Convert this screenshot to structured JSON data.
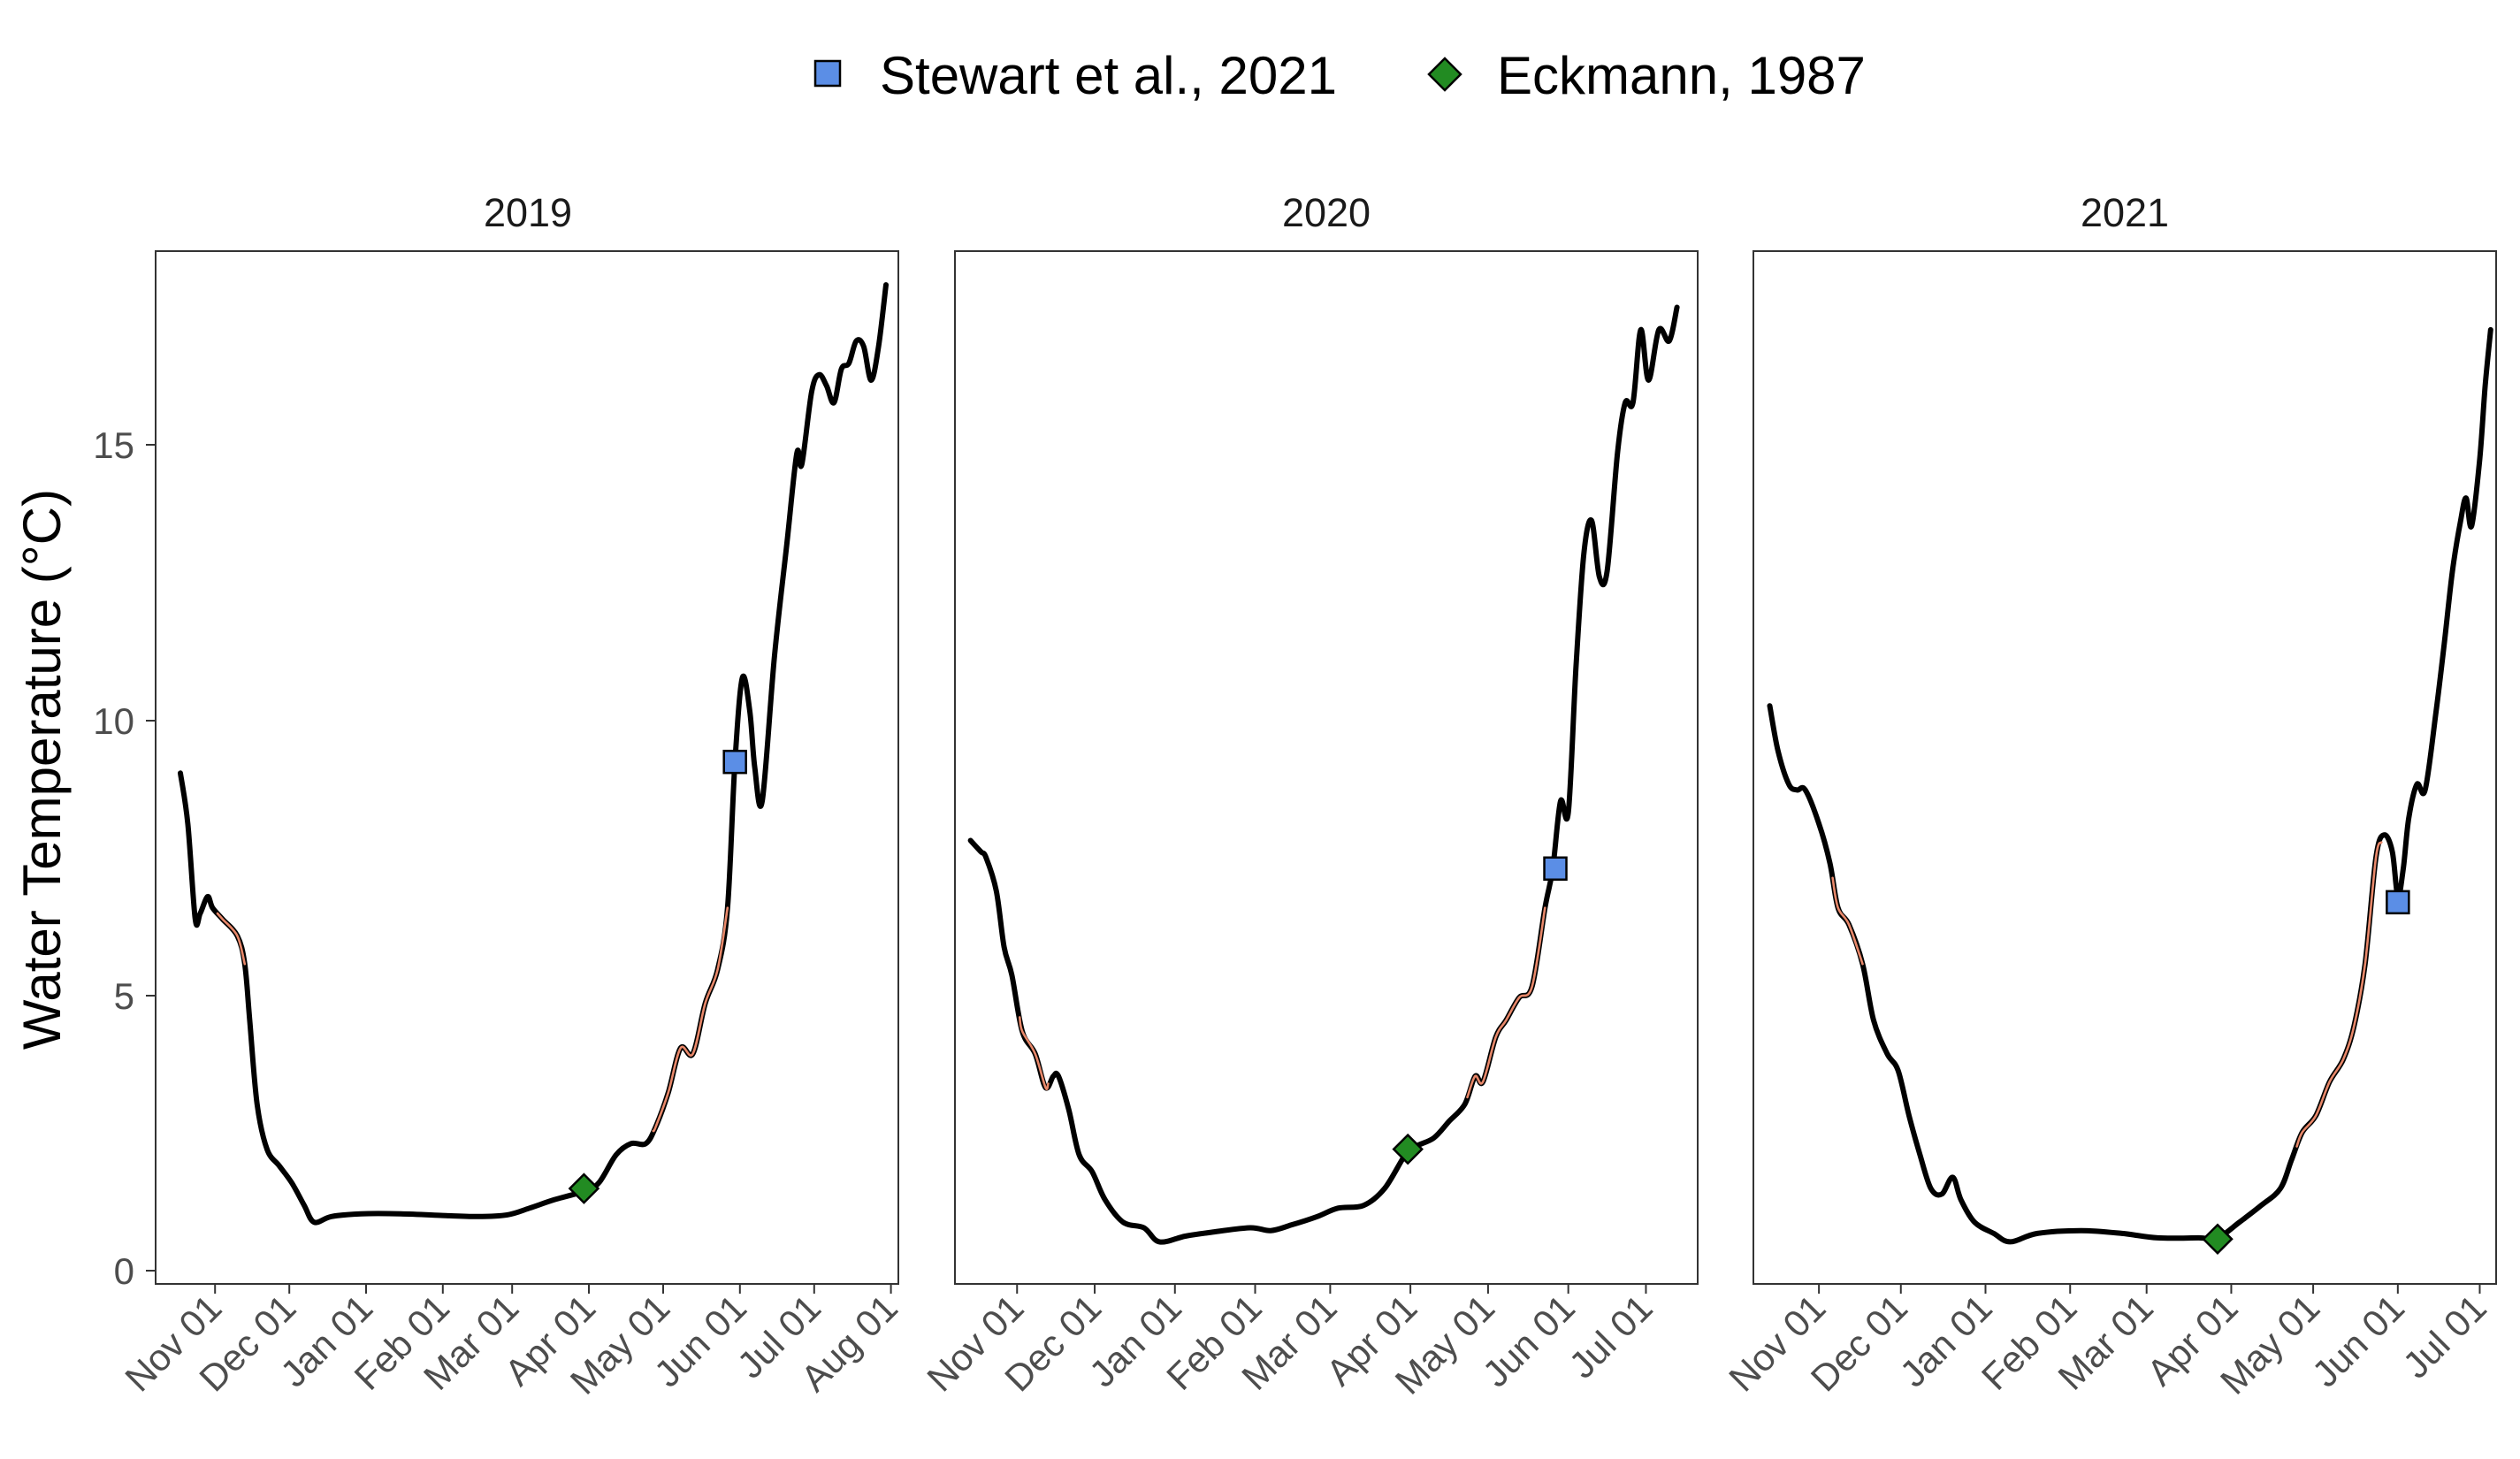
{
  "legend": {
    "items": [
      {
        "label": "Stewart et al., 2021",
        "shape": "square",
        "fill": "#5b8ee6"
      },
      {
        "label": "Eckmann, 1987",
        "shape": "diamond",
        "fill": "#228b22"
      }
    ]
  },
  "colors": {
    "line": "#000000",
    "highlight": "#e8886a",
    "panel_border": "#333333",
    "tick": "#4d4d4d"
  },
  "y_axis": {
    "label": "Water Temperature (°C)",
    "ticks": [
      0,
      5,
      10,
      15
    ],
    "range": [
      -0.2,
      18.2
    ]
  },
  "chart_data": [
    {
      "type": "line",
      "title": "2019",
      "x_range": [
        "2018-10-08",
        "2019-08-04"
      ],
      "x_ticks": [
        {
          "date": "2018-11-01",
          "label": "Nov 01"
        },
        {
          "date": "2018-12-01",
          "label": "Dec 01"
        },
        {
          "date": "2019-01-01",
          "label": "Jan 01"
        },
        {
          "date": "2019-02-01",
          "label": "Feb 01"
        },
        {
          "date": "2019-03-01",
          "label": "Mar 01"
        },
        {
          "date": "2019-04-01",
          "label": "Apr 01"
        },
        {
          "date": "2019-05-01",
          "label": "May 01"
        },
        {
          "date": "2019-06-01",
          "label": "Jun 01"
        },
        {
          "date": "2019-07-01",
          "label": "Jul 01"
        },
        {
          "date": "2019-08-01",
          "label": "Aug 01"
        }
      ],
      "series": [
        {
          "points": [
            [
              "2018-10-18",
              8.9
            ],
            [
              "2018-10-21",
              8.0
            ],
            [
              "2018-10-24",
              6.3
            ],
            [
              "2018-10-26",
              6.4
            ],
            [
              "2018-10-29",
              6.7
            ],
            [
              "2018-10-31",
              6.5
            ],
            [
              "2018-11-04",
              6.3
            ],
            [
              "2018-11-10",
              6.0
            ],
            [
              "2018-11-13",
              5.5
            ],
            [
              "2018-11-15",
              4.5
            ],
            [
              "2018-11-18",
              3.0
            ],
            [
              "2018-11-22",
              2.2
            ],
            [
              "2018-11-27",
              1.9
            ],
            [
              "2018-12-02",
              1.6
            ],
            [
              "2018-12-07",
              1.2
            ],
            [
              "2018-12-11",
              0.9
            ],
            [
              "2018-12-18",
              1.0
            ],
            [
              "2018-12-30",
              1.05
            ],
            [
              "2019-01-15",
              1.05
            ],
            [
              "2019-02-01",
              1.02
            ],
            [
              "2019-02-15",
              1.0
            ],
            [
              "2019-02-27",
              1.03
            ],
            [
              "2019-03-08",
              1.15
            ],
            [
              "2019-03-18",
              1.3
            ],
            [
              "2019-03-30",
              1.45
            ],
            [
              "2019-04-05",
              1.6
            ],
            [
              "2019-04-12",
              2.1
            ],
            [
              "2019-04-18",
              2.3
            ],
            [
              "2019-04-24",
              2.3
            ],
            [
              "2019-04-28",
              2.6
            ],
            [
              "2019-05-03",
              3.2
            ],
            [
              "2019-05-08",
              4.0
            ],
            [
              "2019-05-13",
              3.9
            ],
            [
              "2019-05-18",
              4.8
            ],
            [
              "2019-05-23",
              5.4
            ],
            [
              "2019-05-27",
              6.5
            ],
            [
              "2019-05-30",
              9.1
            ],
            [
              "2019-06-02",
              10.6
            ],
            [
              "2019-06-05",
              10.0
            ],
            [
              "2019-06-07",
              9.0
            ],
            [
              "2019-06-10",
              8.4
            ],
            [
              "2019-06-15",
              11.0
            ],
            [
              "2019-06-20",
              13.0
            ],
            [
              "2019-06-24",
              14.6
            ],
            [
              "2019-06-26",
              14.4
            ],
            [
              "2019-06-30",
              15.7
            ],
            [
              "2019-07-03",
              16.0
            ],
            [
              "2019-07-06",
              15.8
            ],
            [
              "2019-07-09",
              15.5
            ],
            [
              "2019-07-12",
              16.1
            ],
            [
              "2019-07-15",
              16.2
            ],
            [
              "2019-07-18",
              16.6
            ],
            [
              "2019-07-21",
              16.5
            ],
            [
              "2019-07-24",
              15.9
            ],
            [
              "2019-07-27",
              16.5
            ],
            [
              "2019-07-30",
              17.6
            ]
          ]
        }
      ],
      "highlights": [
        [
          "2018-11-02",
          "2018-11-13"
        ],
        [
          "2019-04-27",
          "2019-05-27"
        ]
      ],
      "markers": [
        {
          "source": "Stewart et al., 2021",
          "date": "2019-05-30",
          "value": 9.1
        },
        {
          "source": "Eckmann, 1987",
          "date": "2019-03-30",
          "value": 1.5
        }
      ]
    },
    {
      "type": "line",
      "title": "2020",
      "x_range": [
        "2019-10-08",
        "2020-07-21"
      ],
      "x_ticks": [
        {
          "date": "2019-11-01",
          "label": "Nov 01"
        },
        {
          "date": "2019-12-01",
          "label": "Dec 01"
        },
        {
          "date": "2020-01-01",
          "label": "Jan 01"
        },
        {
          "date": "2020-02-01",
          "label": "Feb 01"
        },
        {
          "date": "2020-03-01",
          "label": "Mar 01"
        },
        {
          "date": "2020-04-01",
          "label": "Apr 01"
        },
        {
          "date": "2020-05-01",
          "label": "May 01"
        },
        {
          "date": "2020-06-01",
          "label": "Jun 01"
        },
        {
          "date": "2020-07-01",
          "label": "Jul 01"
        }
      ],
      "series": [
        {
          "points": [
            [
              "2019-10-14",
              7.7
            ],
            [
              "2019-10-18",
              7.5
            ],
            [
              "2019-10-20",
              7.4
            ],
            [
              "2019-10-24",
              6.8
            ],
            [
              "2019-10-27",
              5.8
            ],
            [
              "2019-10-30",
              5.3
            ],
            [
              "2019-11-03",
              4.3
            ],
            [
              "2019-11-08",
              3.9
            ],
            [
              "2019-11-12",
              3.3
            ],
            [
              "2019-11-15",
              3.5
            ],
            [
              "2019-11-17",
              3.5
            ],
            [
              "2019-11-21",
              2.9
            ],
            [
              "2019-11-25",
              2.1
            ],
            [
              "2019-11-30",
              1.8
            ],
            [
              "2019-12-05",
              1.3
            ],
            [
              "2019-12-12",
              0.9
            ],
            [
              "2019-12-20",
              0.8
            ],
            [
              "2019-12-26",
              0.55
            ],
            [
              "2020-01-05",
              0.65
            ],
            [
              "2020-01-15",
              0.72
            ],
            [
              "2020-01-30",
              0.8
            ],
            [
              "2020-02-07",
              0.75
            ],
            [
              "2020-02-15",
              0.85
            ],
            [
              "2020-02-25",
              1.0
            ],
            [
              "2020-03-04",
              1.15
            ],
            [
              "2020-03-14",
              1.2
            ],
            [
              "2020-03-22",
              1.5
            ],
            [
              "2020-03-30",
              2.1
            ],
            [
              "2020-04-03",
              2.25
            ],
            [
              "2020-04-10",
              2.4
            ],
            [
              "2020-04-16",
              2.7
            ],
            [
              "2020-04-22",
              3.0
            ],
            [
              "2020-04-26",
              3.5
            ],
            [
              "2020-04-29",
              3.4
            ],
            [
              "2020-05-04",
              4.2
            ],
            [
              "2020-05-08",
              4.5
            ],
            [
              "2020-05-13",
              4.9
            ],
            [
              "2020-05-18",
              5.1
            ],
            [
              "2020-05-23",
              6.5
            ],
            [
              "2020-05-26",
              7.2
            ],
            [
              "2020-05-29",
              8.4
            ],
            [
              "2020-06-01",
              8.2
            ],
            [
              "2020-06-04",
              10.8
            ],
            [
              "2020-06-07",
              12.8
            ],
            [
              "2020-06-10",
              13.4
            ],
            [
              "2020-06-13",
              12.4
            ],
            [
              "2020-06-16",
              12.5
            ],
            [
              "2020-06-20",
              14.6
            ],
            [
              "2020-06-23",
              15.5
            ],
            [
              "2020-06-26",
              15.5
            ],
            [
              "2020-06-29",
              16.8
            ],
            [
              "2020-07-02",
              15.9
            ],
            [
              "2020-07-06",
              16.8
            ],
            [
              "2020-07-10",
              16.6
            ],
            [
              "2020-07-13",
              17.2
            ]
          ]
        }
      ],
      "highlights": [
        [
          "2019-11-02",
          "2019-11-13"
        ],
        [
          "2020-04-23",
          "2020-05-23"
        ]
      ],
      "markers": [
        {
          "source": "Stewart et al., 2021",
          "date": "2020-05-27",
          "value": 7.2
        },
        {
          "source": "Eckmann, 1987",
          "date": "2020-03-31",
          "value": 2.2
        }
      ]
    },
    {
      "type": "line",
      "title": "2021",
      "x_range": [
        "2020-10-08",
        "2021-07-07"
      ],
      "x_ticks": [
        {
          "date": "2020-11-01",
          "label": "Nov 01"
        },
        {
          "date": "2020-12-01",
          "label": "Dec 01"
        },
        {
          "date": "2021-01-01",
          "label": "Jan 01"
        },
        {
          "date": "2021-02-01",
          "label": "Feb 01"
        },
        {
          "date": "2021-03-01",
          "label": "Mar 01"
        },
        {
          "date": "2021-04-01",
          "label": "Apr 01"
        },
        {
          "date": "2021-05-01",
          "label": "May 01"
        },
        {
          "date": "2021-06-01",
          "label": "Jun 01"
        },
        {
          "date": "2021-07-01",
          "label": "Jul 01"
        }
      ],
      "series": [
        {
          "points": [
            [
              "2020-10-14",
              10.1
            ],
            [
              "2020-10-17",
              9.3
            ],
            [
              "2020-10-21",
              8.7
            ],
            [
              "2020-10-24",
              8.6
            ],
            [
              "2020-10-27",
              8.6
            ],
            [
              "2020-11-01",
              8.0
            ],
            [
              "2020-11-05",
              7.3
            ],
            [
              "2020-11-08",
              6.5
            ],
            [
              "2020-11-12",
              6.2
            ],
            [
              "2020-11-17",
              5.5
            ],
            [
              "2020-11-21",
              4.5
            ],
            [
              "2020-11-26",
              3.9
            ],
            [
              "2020-11-30",
              3.6
            ],
            [
              "2020-12-04",
              2.8
            ],
            [
              "2020-12-08",
              2.1
            ],
            [
              "2020-12-12",
              1.5
            ],
            [
              "2020-12-16",
              1.4
            ],
            [
              "2020-12-20",
              1.7
            ],
            [
              "2020-12-23",
              1.3
            ],
            [
              "2020-12-28",
              0.9
            ],
            [
              "2021-01-04",
              0.7
            ],
            [
              "2021-01-10",
              0.55
            ],
            [
              "2021-01-20",
              0.7
            ],
            [
              "2021-02-05",
              0.75
            ],
            [
              "2021-02-20",
              0.7
            ],
            [
              "2021-03-05",
              0.62
            ],
            [
              "2021-03-20",
              0.62
            ],
            [
              "2021-03-27",
              0.62
            ],
            [
              "2021-04-04",
              0.9
            ],
            [
              "2021-04-12",
              1.2
            ],
            [
              "2021-04-19",
              1.5
            ],
            [
              "2021-04-23",
              2.0
            ],
            [
              "2021-04-27",
              2.5
            ],
            [
              "2021-05-02",
              2.8
            ],
            [
              "2021-05-07",
              3.4
            ],
            [
              "2021-05-12",
              3.8
            ],
            [
              "2021-05-16",
              4.4
            ],
            [
              "2021-05-20",
              5.5
            ],
            [
              "2021-05-24",
              7.4
            ],
            [
              "2021-05-27",
              7.8
            ],
            [
              "2021-05-30",
              7.5
            ],
            [
              "2021-06-01",
              6.7
            ],
            [
              "2021-06-03",
              7.2
            ],
            [
              "2021-06-05",
              8.1
            ],
            [
              "2021-06-08",
              8.7
            ],
            [
              "2021-06-11",
              8.6
            ],
            [
              "2021-06-15",
              10.0
            ],
            [
              "2021-06-18",
              11.2
            ],
            [
              "2021-06-21",
              12.5
            ],
            [
              "2021-06-24",
              13.4
            ],
            [
              "2021-06-26",
              13.8
            ],
            [
              "2021-06-28",
              13.3
            ],
            [
              "2021-07-01",
              14.5
            ],
            [
              "2021-07-03",
              15.8
            ],
            [
              "2021-07-05",
              16.8
            ]
          ]
        }
      ],
      "highlights": [
        [
          "2020-11-06",
          "2020-11-17"
        ],
        [
          "2021-04-25",
          "2021-05-26"
        ]
      ],
      "markers": [
        {
          "source": "Stewart et al., 2021",
          "date": "2021-06-01",
          "value": 6.6
        },
        {
          "source": "Eckmann, 1987",
          "date": "2021-03-27",
          "value": 0.6
        }
      ]
    }
  ]
}
